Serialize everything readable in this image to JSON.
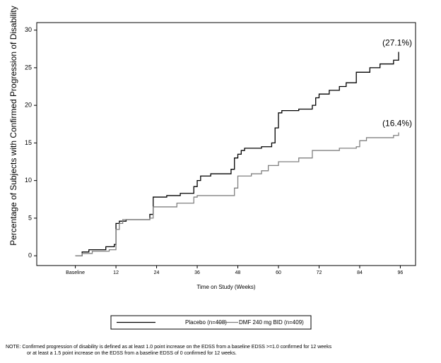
{
  "chart_data": {
    "type": "step",
    "y_label": "Percentage of Subjects with Confirmed Progression of Disability",
    "x_label": "Time on Study (Weeks)",
    "xlim": [
      -11.4,
      100.5
    ],
    "xticks": [
      {
        "value": 0,
        "label": "Baseline"
      },
      12,
      24,
      36,
      48,
      60,
      72,
      84,
      96
    ],
    "ylim": [
      -1.3,
      31
    ],
    "yticks": [
      0,
      5,
      10,
      15,
      20,
      25,
      30
    ],
    "grid": false,
    "series": [
      {
        "name": "Placebo (n=408)",
        "color": "#000000",
        "x": [
          0,
          2,
          4,
          9,
          11.5,
          12,
          13,
          15,
          22,
          23,
          27,
          31,
          35,
          36,
          37,
          40,
          46,
          47,
          48,
          49,
          50,
          55,
          58,
          59,
          60,
          61,
          66,
          70,
          71,
          72,
          75,
          78,
          80,
          83,
          87,
          90,
          94,
          95.5
        ],
        "values": [
          0,
          0.5,
          0.8,
          1.2,
          1.5,
          4.3,
          4.6,
          4.8,
          5.5,
          7.8,
          8,
          8.3,
          9.2,
          10,
          10.6,
          10.9,
          11.5,
          13,
          13.5,
          14,
          14.3,
          14.5,
          15,
          17,
          19,
          19.3,
          19.5,
          20,
          21,
          21.5,
          22,
          22.5,
          23,
          24.4,
          25,
          25.5,
          26,
          27.1
        ]
      },
      {
        "name": "DMF 240 mg BID (n=409)",
        "color": "#808080",
        "x": [
          0,
          2,
          5,
          10,
          12,
          13,
          14,
          22,
          23,
          30,
          35,
          36,
          47,
          48,
          52,
          55,
          57,
          60,
          66,
          70,
          78,
          83,
          84,
          86,
          94,
          95.5
        ],
        "values": [
          0,
          0.3,
          0.6,
          0.8,
          3.5,
          4.3,
          4.8,
          5,
          6.5,
          7,
          7.8,
          8,
          9,
          10.6,
          10.9,
          11.3,
          12,
          12.5,
          13,
          14,
          14.3,
          14.5,
          15.3,
          15.7,
          16,
          16.4
        ]
      }
    ],
    "annotations": [
      "(27.1%)",
      "(16.4%)"
    ],
    "note": [
      "NOTE: Confirmed progression of disability is defined as at least 1.0 point increase on the EDSS from a baseline EDSS >=1.0 confirmed for 12 weeks",
      "or at least a 1.5 point increase on the EDSS from a baseline EDSS of 0 confirmed for 12 weeks."
    ]
  }
}
